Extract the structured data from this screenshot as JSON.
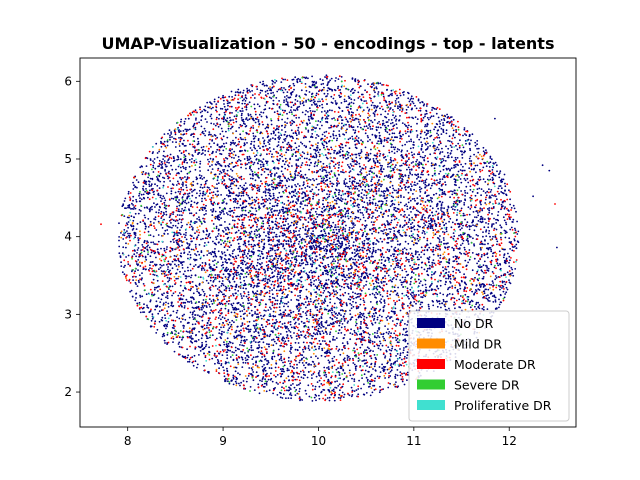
{
  "chart_data": {
    "type": "scatter",
    "title": "UMAP-Visualization - 50 - encodings - top - latents",
    "xlabel": "",
    "ylabel": "",
    "xlim": [
      7.5,
      12.7
    ],
    "ylim": [
      1.55,
      6.3
    ],
    "xticks": [
      8,
      9,
      10,
      11,
      12
    ],
    "yticks": [
      2,
      3,
      4,
      5,
      6
    ],
    "grid": false,
    "legend_position": "lower right",
    "cloud": {
      "center": [
        10.0,
        3.98
      ],
      "x_range": [
        7.7,
        11.9
      ],
      "y_range": [
        1.85,
        6.05
      ]
    },
    "series": [
      {
        "name": "No DR",
        "color": "#000080",
        "approx_points": 9000
      },
      {
        "name": "Mild DR",
        "color": "#ff8c00",
        "approx_points": 450
      },
      {
        "name": "Moderate DR",
        "color": "#ff0000",
        "approx_points": 1700
      },
      {
        "name": "Severe DR",
        "color": "#32cd32",
        "approx_points": 300
      },
      {
        "name": "Proliferative DR",
        "color": "#40e0d0",
        "approx_points": 250
      }
    ],
    "outliers": [
      {
        "x": 11.95,
        "y": 4.8,
        "series": "No DR"
      },
      {
        "x": 12.0,
        "y": 3.98,
        "series": "No DR"
      },
      {
        "x": 12.25,
        "y": 4.52,
        "series": "No DR"
      },
      {
        "x": 12.35,
        "y": 4.92,
        "series": "No DR"
      },
      {
        "x": 12.42,
        "y": 4.85,
        "series": "No DR"
      },
      {
        "x": 12.48,
        "y": 4.42,
        "series": "Moderate DR"
      },
      {
        "x": 12.5,
        "y": 3.86,
        "series": "No DR"
      },
      {
        "x": 11.85,
        "y": 5.52,
        "series": "No DR"
      },
      {
        "x": 7.72,
        "y": 4.16,
        "series": "Moderate DR"
      }
    ]
  }
}
